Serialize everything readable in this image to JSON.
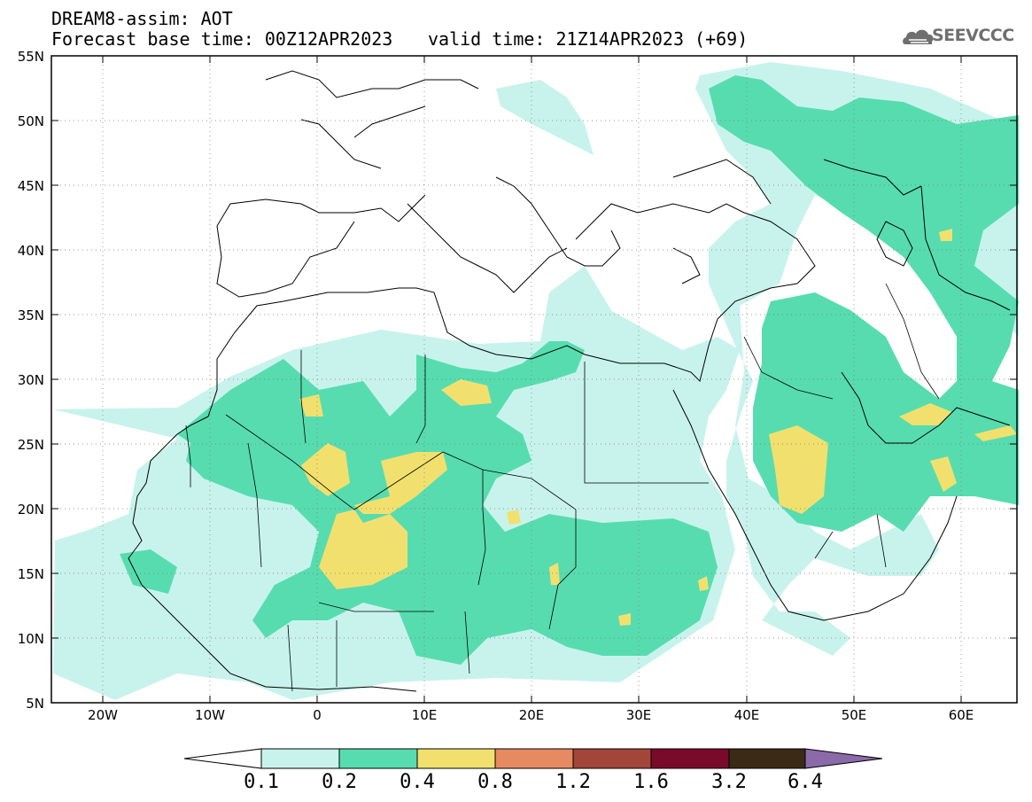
{
  "header": {
    "line1": "DREAM8-assim: AOT",
    "base_time": "Forecast base time: 00Z12APR2023",
    "valid_time": "valid time: 21Z14APR2023 (+69)"
  },
  "logo": {
    "text": "SEEVCCC",
    "color": "#6f6f6f"
  },
  "map": {
    "lat_labels": [
      "55N",
      "50N",
      "45N",
      "40N",
      "35N",
      "30N",
      "25N",
      "20N",
      "15N",
      "10N",
      "5N"
    ],
    "lon_labels": [
      "20W",
      "10W",
      "0",
      "10E",
      "20E",
      "30E",
      "40E",
      "50E",
      "60E"
    ],
    "lat_range": [
      5,
      55
    ],
    "lon_range": [
      -25,
      65
    ],
    "grid": "dotted"
  },
  "colorbar": {
    "levels": [
      "0.1",
      "0.2",
      "0.4",
      "0.8",
      "1.2",
      "1.6",
      "3.2",
      "6.4"
    ],
    "colors": [
      "#ffffff",
      "#c8f3ec",
      "#57dcb0",
      "#f2e06e",
      "#e68a62",
      "#a3463a",
      "#7a0a2a",
      "#3b2a15",
      "#8a6aa8"
    ]
  }
}
